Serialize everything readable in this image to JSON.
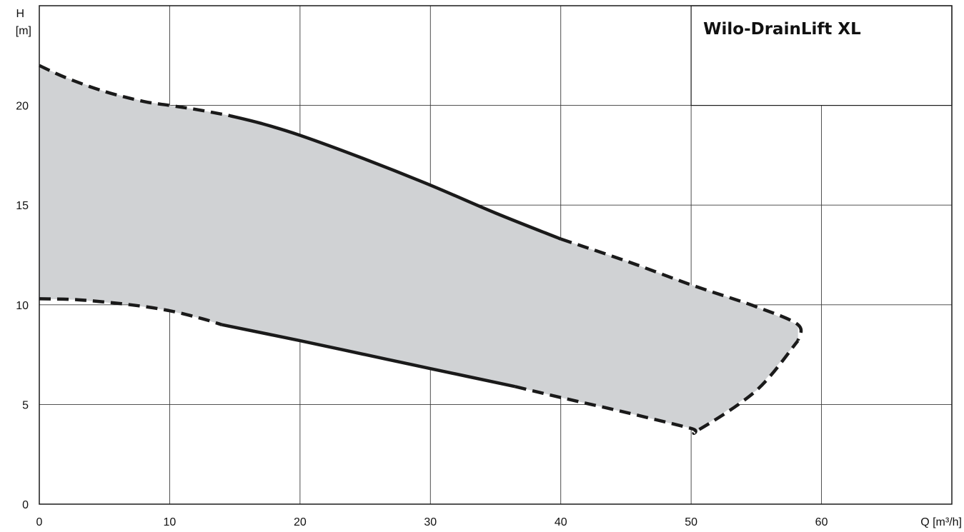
{
  "chart_data": {
    "type": "area",
    "title": "Wilo-DrainLift XL",
    "xlabel": "Q [m³/h]",
    "ylabel_line1": "H",
    "ylabel_line2": "[m]",
    "xlim": [
      0,
      70
    ],
    "ylim": [
      0,
      25
    ],
    "x_ticks": [
      0,
      10,
      20,
      30,
      40,
      50,
      60
    ],
    "y_ticks": [
      0,
      5,
      10,
      15,
      20
    ],
    "grid": true,
    "fill_color": "#d0d2d4",
    "line_color": "#1a1a1a",
    "upper_curve": {
      "dashed": [
        [
          0,
          22.0
        ],
        [
          2,
          21.4
        ],
        [
          5,
          20.7
        ],
        [
          8,
          20.2
        ],
        [
          10,
          20.0
        ],
        [
          12,
          19.8
        ],
        [
          14.5,
          19.5
        ]
      ],
      "solid": [
        [
          14.5,
          19.5
        ],
        [
          17,
          19.1
        ],
        [
          20,
          18.5
        ],
        [
          25,
          17.3
        ],
        [
          30,
          16.0
        ],
        [
          35,
          14.6
        ],
        [
          40,
          13.3
        ]
      ],
      "dashed_end": [
        [
          40,
          13.3
        ],
        [
          45,
          12.2
        ],
        [
          50,
          11.0
        ],
        [
          55,
          9.9
        ],
        [
          58.2,
          9.0
        ],
        [
          58.2,
          8.2
        ]
      ]
    },
    "lower_curve": {
      "dashed": [
        [
          0,
          10.3
        ],
        [
          3,
          10.25
        ],
        [
          7,
          10.0
        ],
        [
          10,
          9.7
        ],
        [
          12.5,
          9.3
        ],
        [
          14,
          9.0
        ]
      ],
      "solid": [
        [
          14,
          9.0
        ],
        [
          20,
          8.2
        ],
        [
          25,
          7.5
        ],
        [
          30,
          6.8
        ],
        [
          36.5,
          5.9
        ]
      ],
      "dashed_end": [
        [
          36.5,
          5.9
        ],
        [
          40,
          5.35
        ],
        [
          45,
          4.6
        ],
        [
          50,
          3.8
        ],
        [
          50.5,
          3.7
        ],
        [
          55,
          5.7
        ],
        [
          58.2,
          8.2
        ]
      ]
    }
  }
}
